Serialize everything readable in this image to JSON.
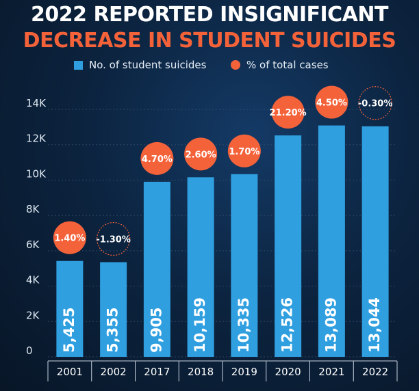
{
  "title_line1": "2022 REPORTED INSIGNIFICANT",
  "title_line2": "DECREASE IN STUDENT SUICIDES",
  "colors": {
    "bar": "#2f9fe0",
    "accent": "#f4623a",
    "text": "#ffffff",
    "grid": "#3a5575"
  },
  "legend": {
    "bar_label": "No. of student suicides",
    "circle_label": "% of total cases"
  },
  "chart_data": {
    "type": "bar",
    "title": "2022 REPORTED INSIGNIFICANT DECREASE IN STUDENT SUICIDES",
    "categories": [
      "2001",
      "2002",
      "2017",
      "2018",
      "2019",
      "2020",
      "2021",
      "2022"
    ],
    "values": [
      5425,
      5355,
      9905,
      10159,
      10335,
      12526,
      13089,
      13044
    ],
    "value_labels": [
      "5,425",
      "5,355",
      "9,905",
      "10,159",
      "10,335",
      "12,526",
      "13,089",
      "13,044"
    ],
    "percent_labels": [
      "1.40%",
      "-1.30%",
      "4.70%",
      "2.60%",
      "1.70%",
      "21.20%",
      "4.50%",
      "-0.30%"
    ],
    "percent_negative": [
      false,
      true,
      false,
      false,
      false,
      false,
      false,
      true
    ],
    "yticks": [
      "0",
      "2K",
      "4K",
      "6K",
      "8K",
      "10K",
      "12K",
      "14K"
    ],
    "ytick_values": [
      0,
      2000,
      4000,
      6000,
      8000,
      10000,
      12000,
      14000
    ],
    "ylim": [
      0,
      14000
    ],
    "xlabel": "",
    "ylabel": "",
    "grid": true
  }
}
